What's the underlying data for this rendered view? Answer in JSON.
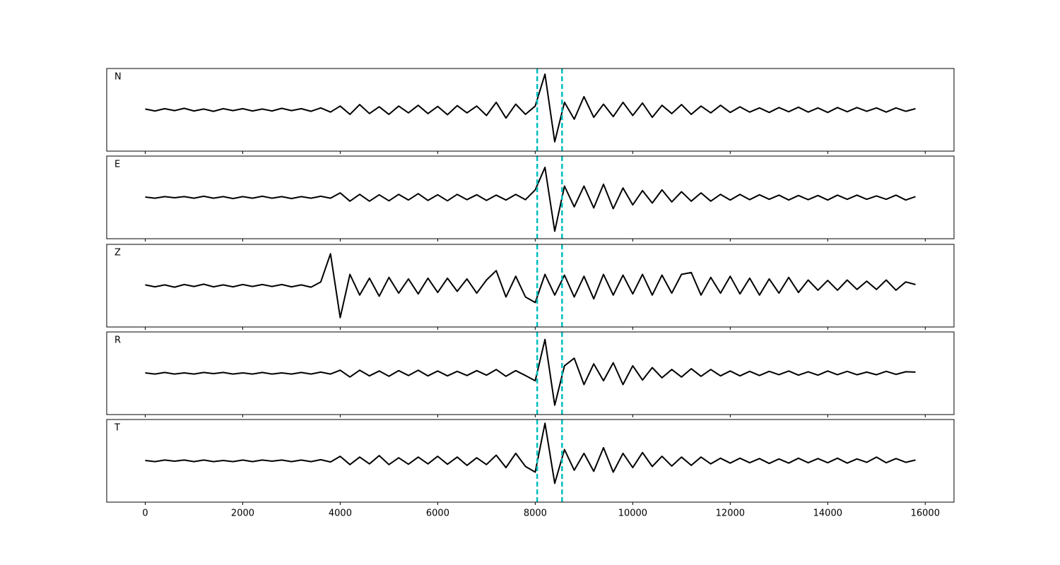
{
  "chart_data": {
    "type": "line",
    "x": [
      0,
      200,
      400,
      600,
      800,
      1000,
      1200,
      1400,
      1600,
      1800,
      2000,
      2200,
      2400,
      2600,
      2800,
      3000,
      3200,
      3400,
      3600,
      3800,
      4000,
      4200,
      4400,
      4600,
      4800,
      5000,
      5200,
      5400,
      5600,
      5800,
      6000,
      6200,
      6400,
      6600,
      6800,
      7000,
      7200,
      7400,
      7600,
      7800,
      8000,
      8200,
      8400,
      8600,
      8800,
      9000,
      9200,
      9400,
      9600,
      9800,
      10000,
      10200,
      10400,
      10600,
      10800,
      11000,
      11200,
      11400,
      11600,
      11800,
      12000,
      12200,
      12400,
      12600,
      12800,
      13000,
      13200,
      13400,
      13600,
      13800,
      14000,
      14200,
      14400,
      14600,
      14800,
      15000,
      15200,
      15400,
      15600,
      15800
    ],
    "xlim": [
      -790,
      16590
    ],
    "xticks": [
      0,
      2000,
      4000,
      6000,
      8000,
      10000,
      12000,
      14000,
      16000
    ],
    "ylim": [
      -1.1,
      1.1
    ],
    "line_color": "#000000",
    "vlines": [
      8040,
      8550
    ],
    "vline_color": "#00bfbf",
    "panels": [
      {
        "label": "N",
        "values": [
          0.02,
          -0.03,
          0.03,
          -0.02,
          0.04,
          -0.03,
          0.02,
          -0.04,
          0.03,
          -0.02,
          0.03,
          -0.03,
          0.02,
          -0.03,
          0.04,
          -0.02,
          0.03,
          -0.04,
          0.05,
          -0.06,
          0.1,
          -0.12,
          0.14,
          -0.1,
          0.08,
          -0.12,
          0.1,
          -0.08,
          0.12,
          -0.1,
          0.09,
          -0.13,
          0.11,
          -0.08,
          0.1,
          -0.15,
          0.2,
          -0.22,
          0.15,
          -0.12,
          0.1,
          0.95,
          -0.85,
          0.2,
          -0.25,
          0.35,
          -0.2,
          0.15,
          -0.18,
          0.2,
          -0.15,
          0.18,
          -0.2,
          0.12,
          -0.1,
          0.14,
          -0.12,
          0.1,
          -0.08,
          0.12,
          -0.07,
          0.08,
          -0.06,
          0.05,
          -0.07,
          0.06,
          -0.05,
          0.07,
          -0.06,
          0.05,
          -0.07,
          0.06,
          -0.05,
          0.06,
          -0.04,
          0.05,
          -0.06,
          0.05,
          -0.04,
          0.03
        ]
      },
      {
        "label": "E",
        "values": [
          0.01,
          -0.02,
          0.02,
          -0.01,
          0.02,
          -0.02,
          0.03,
          -0.02,
          0.02,
          -0.03,
          0.02,
          -0.02,
          0.03,
          -0.02,
          0.02,
          -0.03,
          0.02,
          -0.02,
          0.03,
          -0.02,
          0.12,
          -0.1,
          0.08,
          -0.1,
          0.07,
          -0.09,
          0.08,
          -0.07,
          0.1,
          -0.08,
          0.07,
          -0.09,
          0.08,
          -0.06,
          0.07,
          -0.08,
          0.06,
          -0.07,
          0.08,
          -0.06,
          0.2,
          0.8,
          -0.9,
          0.3,
          -0.25,
          0.3,
          -0.28,
          0.35,
          -0.3,
          0.25,
          -0.2,
          0.18,
          -0.15,
          0.2,
          -0.12,
          0.15,
          -0.1,
          0.12,
          -0.1,
          0.08,
          -0.07,
          0.08,
          -0.06,
          0.07,
          -0.05,
          0.06,
          -0.07,
          0.05,
          -0.06,
          0.05,
          -0.07,
          0.06,
          -0.05,
          0.06,
          -0.05,
          0.04,
          -0.05,
          0.06,
          -0.07,
          0.02
        ]
      },
      {
        "label": "Z",
        "values": [
          0.02,
          -0.03,
          0.02,
          -0.04,
          0.03,
          -0.02,
          0.04,
          -0.03,
          0.02,
          -0.03,
          0.03,
          -0.02,
          0.03,
          -0.02,
          0.03,
          -0.03,
          0.02,
          -0.04,
          0.1,
          0.85,
          -0.85,
          0.3,
          -0.25,
          0.2,
          -0.28,
          0.22,
          -0.2,
          0.18,
          -0.22,
          0.2,
          -0.18,
          0.2,
          -0.15,
          0.18,
          -0.2,
          0.15,
          0.4,
          -0.3,
          0.25,
          -0.3,
          -0.45,
          0.3,
          -0.25,
          0.28,
          -0.3,
          0.25,
          -0.35,
          0.3,
          -0.25,
          0.28,
          -0.22,
          0.3,
          -0.25,
          0.28,
          -0.2,
          0.3,
          0.35,
          -0.25,
          0.22,
          -0.2,
          0.25,
          -0.22,
          0.2,
          -0.25,
          0.18,
          -0.2,
          0.22,
          -0.18,
          0.15,
          -0.12,
          0.14,
          -0.12,
          0.15,
          -0.1,
          0.12,
          -0.1,
          0.15,
          -0.12,
          0.1,
          0.03
        ]
      },
      {
        "label": "R",
        "values": [
          0.01,
          -0.02,
          0.02,
          -0.02,
          0.01,
          -0.02,
          0.02,
          -0.01,
          0.02,
          -0.02,
          0.01,
          -0.02,
          0.02,
          -0.02,
          0.01,
          -0.02,
          0.02,
          -0.02,
          0.03,
          -0.02,
          0.08,
          -0.1,
          0.08,
          -0.07,
          0.06,
          -0.08,
          0.07,
          -0.06,
          0.08,
          -0.07,
          0.06,
          -0.07,
          0.05,
          -0.06,
          0.07,
          -0.05,
          0.1,
          -0.08,
          0.07,
          -0.06,
          -0.2,
          0.9,
          -0.85,
          0.2,
          0.4,
          -0.3,
          0.25,
          -0.2,
          0.28,
          -0.3,
          0.2,
          -0.18,
          0.15,
          -0.12,
          0.1,
          -0.1,
          0.12,
          -0.08,
          0.1,
          -0.07,
          0.06,
          -0.07,
          0.05,
          -0.06,
          0.05,
          -0.04,
          0.06,
          -0.05,
          0.04,
          -0.05,
          0.06,
          -0.04,
          0.05,
          -0.04,
          0.03,
          -0.04,
          0.05,
          -0.03,
          0.04,
          0.03
        ]
      },
      {
        "label": "T",
        "values": [
          0.01,
          -0.02,
          0.02,
          -0.01,
          0.02,
          -0.02,
          0.02,
          -0.02,
          0.01,
          -0.02,
          0.02,
          -0.02,
          0.02,
          -0.01,
          0.02,
          -0.02,
          0.02,
          -0.02,
          0.03,
          -0.03,
          0.12,
          -0.1,
          0.1,
          -0.08,
          0.14,
          -0.1,
          0.08,
          -0.09,
          0.1,
          -0.08,
          0.12,
          -0.09,
          0.1,
          -0.12,
          0.08,
          -0.1,
          0.15,
          -0.18,
          0.2,
          -0.15,
          -0.3,
          1.0,
          -0.6,
          0.3,
          -0.25,
          0.2,
          -0.28,
          0.35,
          -0.3,
          0.2,
          -0.18,
          0.22,
          -0.15,
          0.12,
          -0.14,
          0.1,
          -0.12,
          0.1,
          -0.08,
          0.07,
          -0.06,
          0.07,
          -0.05,
          0.06,
          -0.07,
          0.05,
          -0.06,
          0.07,
          -0.05,
          0.06,
          -0.05,
          0.07,
          -0.06,
          0.05,
          -0.04,
          0.1,
          -0.05,
          0.06,
          -0.04,
          0.02
        ]
      }
    ]
  }
}
